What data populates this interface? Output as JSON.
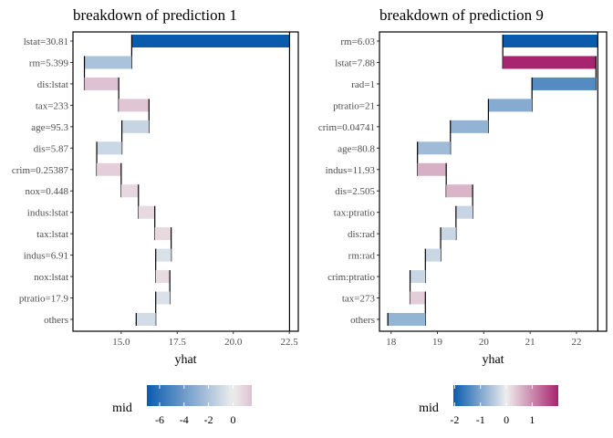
{
  "chart_data": [
    {
      "type": "bar",
      "subtype": "waterfall",
      "title": "breakdown of prediction 1",
      "xlabel": "yhat",
      "xlim": [
        12.85,
        22.9
      ],
      "xticks": [
        "15.0",
        "17.5",
        "20.0",
        "22.5"
      ],
      "xtick_values": [
        15,
        17.5,
        20,
        22.5
      ],
      "intercept": 22.51,
      "legend": {
        "title": "mid",
        "ticks": [
          "-6",
          "-4",
          "-2",
          "0"
        ],
        "tick_values": [
          -6,
          -4,
          -2,
          0
        ],
        "range": [
          -7.04,
          1.53
        ],
        "placement": "bottom"
      },
      "rows": [
        {
          "label": "lstat=30.81",
          "mid": -7.04
        },
        {
          "label": "rm=5.399",
          "mid": -2.11
        },
        {
          "label": "dis:lstat",
          "mid": 1.53
        },
        {
          "label": "tax=233",
          "mid": 1.35
        },
        {
          "label": "age=95.3",
          "mid": -1.21
        },
        {
          "label": "dis=5.87",
          "mid": -1.12
        },
        {
          "label": "crim=0.25387",
          "mid": 1.09
        },
        {
          "label": "nox=0.448",
          "mid": 0.77
        },
        {
          "label": "indus:lstat",
          "mid": 0.73
        },
        {
          "label": "tax:lstat",
          "mid": 0.73
        },
        {
          "label": "indus=6.91",
          "mid": -0.69
        },
        {
          "label": "nox:lstat",
          "mid": 0.63
        },
        {
          "label": "ptratio=17.9",
          "mid": -0.63
        },
        {
          "label": "others",
          "mid": -0.87
        }
      ]
    },
    {
      "type": "bar",
      "subtype": "waterfall",
      "title": "breakdown of prediction 9",
      "xlabel": "yhat",
      "xlim": [
        17.75,
        22.65
      ],
      "xticks": [
        "18",
        "19",
        "20",
        "21",
        "22"
      ],
      "xtick_values": [
        18,
        19,
        20,
        21,
        22
      ],
      "intercept": 22.46,
      "legend": {
        "title": "mid",
        "ticks": [
          "-2",
          "-1",
          "0",
          "1"
        ],
        "tick_values": [
          -2,
          -1,
          0,
          1
        ],
        "range": [
          -2.05,
          2.01
        ],
        "placement": "bottom"
      },
      "rows": [
        {
          "label": "rm=6.03",
          "mid": -2.05
        },
        {
          "label": "lstat=7.88",
          "mid": 2.01
        },
        {
          "label": "rad=1",
          "mid": -1.38
        },
        {
          "label": "ptratio=21",
          "mid": -0.94
        },
        {
          "label": "crim=0.04741",
          "mid": -0.82
        },
        {
          "label": "age=80.8",
          "mid": -0.71
        },
        {
          "label": "indus=11.93",
          "mid": 0.62
        },
        {
          "label": "dis=2.505",
          "mid": 0.57
        },
        {
          "label": "tax:ptratio",
          "mid": -0.36
        },
        {
          "label": "dis:rad",
          "mid": -0.33
        },
        {
          "label": "rm:rad",
          "mid": -0.33
        },
        {
          "label": "crim:ptratio",
          "mid": -0.33
        },
        {
          "label": "tax=273",
          "mid": 0.33
        },
        {
          "label": "others",
          "mid": -0.81
        }
      ]
    }
  ],
  "colors": {
    "low": "#0b5bad",
    "mid": "#eeeeee",
    "high": "#a6206b",
    "connector": "#000000"
  }
}
